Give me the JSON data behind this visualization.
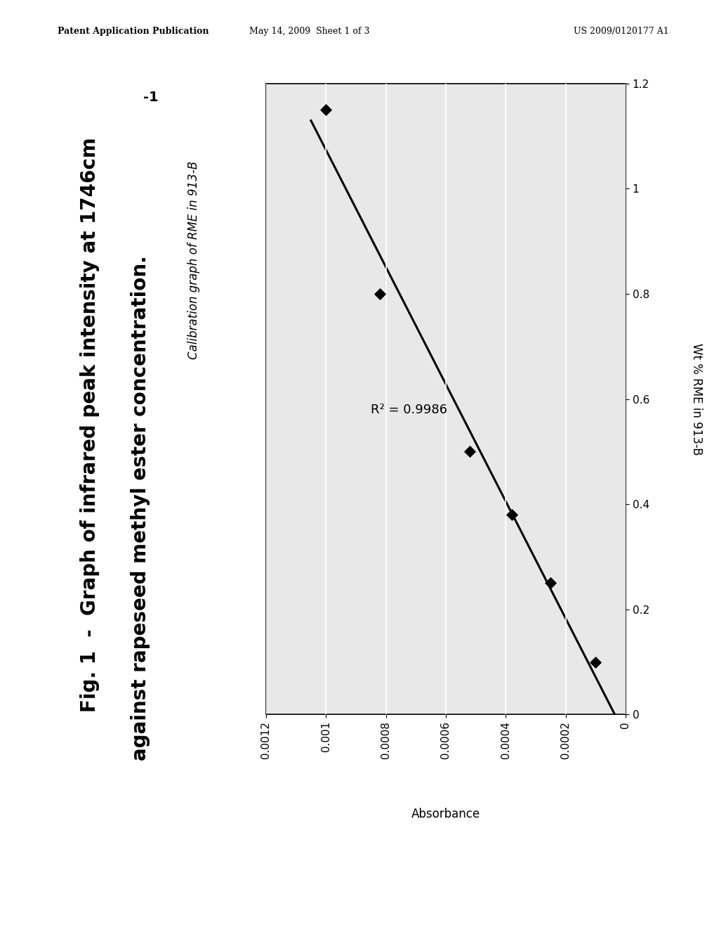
{
  "absorbance_values": [
    0.001,
    0.00082,
    0.00052,
    0.00038,
    0.00025,
    0.0001
  ],
  "wt_pct_values": [
    1.15,
    0.8,
    0.5,
    0.38,
    0.25,
    0.1
  ],
  "r_squared": "R² = 0.9986",
  "chart_title": "Calibration graph of RME in 913-B",
  "xlabel": "Absorbance",
  "ylabel": "Wt % RME in 913-B",
  "xmin": 0.0,
  "xmax": 0.0012,
  "ymin": 0.0,
  "ymax": 1.2,
  "xticks": [
    0.0,
    0.0002,
    0.0004,
    0.0006,
    0.0008,
    0.001,
    0.0012
  ],
  "xtick_labels": [
    "0",
    "0.0002",
    "0.0004",
    "0.0006",
    "0.0008",
    "0.001",
    "0.0012"
  ],
  "yticks": [
    0.0,
    0.2,
    0.4,
    0.6,
    0.8,
    1.0,
    1.2
  ],
  "ytick_labels": [
    "0",
    "0.2",
    "0.4",
    "0.6",
    "0.8",
    "1",
    "1.2"
  ],
  "page_header_left": "Patent Application Publication",
  "page_header_mid": "May 14, 2009  Sheet 1 of 3",
  "page_header_right": "US 2009/0120177 A1",
  "fig_title_line1": "Fig. 1  -  Graph of infrared peak intensity at 1746cm",
  "fig_title_sup": "-1",
  "fig_title_line2": "against rapeseed methyl ester concentration.",
  "bg_color": "#ffffff",
  "plot_bg_color": "#e8e8e8",
  "line_color": "#000000",
  "marker_color": "#000000",
  "grid_color": "#ffffff"
}
